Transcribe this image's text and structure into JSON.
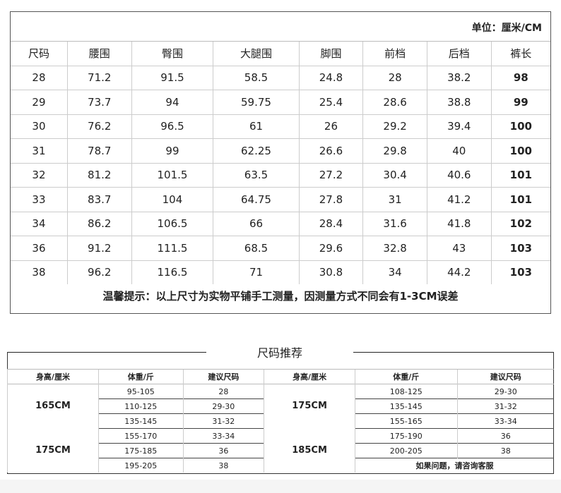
{
  "size_chart": {
    "unit": "单位：厘米/CM",
    "headers": [
      "尺码",
      "腰围",
      "臀围",
      "大腿围",
      "脚围",
      "前档",
      "后档",
      "裤长"
    ],
    "rows": [
      [
        "28",
        "71.2",
        "91.5",
        "58.5",
        "24.8",
        "28",
        "38.2",
        "98"
      ],
      [
        "29",
        "73.7",
        "94",
        "59.75",
        "25.4",
        "28.6",
        "38.8",
        "99"
      ],
      [
        "30",
        "76.2",
        "96.5",
        "61",
        "26",
        "29.2",
        "39.4",
        "100"
      ],
      [
        "31",
        "78.7",
        "99",
        "62.25",
        "26.6",
        "29.8",
        "40",
        "100"
      ],
      [
        "32",
        "81.2",
        "101.5",
        "63.5",
        "27.2",
        "30.4",
        "40.6",
        "101"
      ],
      [
        "33",
        "83.7",
        "104",
        "64.75",
        "27.8",
        "31",
        "41.2",
        "101"
      ],
      [
        "34",
        "86.2",
        "106.5",
        "66",
        "28.4",
        "31.6",
        "41.8",
        "102"
      ],
      [
        "36",
        "91.2",
        "111.5",
        "68.5",
        "29.6",
        "32.8",
        "43",
        "103"
      ],
      [
        "38",
        "96.2",
        "116.5",
        "71",
        "30.8",
        "34",
        "44.2",
        "103"
      ]
    ],
    "note": "温馨提示：以上尺寸为实物平铺手工测量，因测量方式不同会有1-3CM误差"
  },
  "recommend": {
    "title": "尺码推荐",
    "headers": [
      "身高/厘米",
      "体重/斤",
      "建议尺码",
      "身高/厘米",
      "体重/斤",
      "建议尺码"
    ],
    "left_heights": [
      "165CM",
      "175CM"
    ],
    "right_heights": [
      "175CM",
      "185CM"
    ],
    "rows": [
      [
        "95-105",
        "28",
        "108-125",
        "29-30"
      ],
      [
        "110-125",
        "29-30",
        "135-145",
        "31-32"
      ],
      [
        "135-145",
        "31-32",
        "155-165",
        "33-34"
      ],
      [
        "155-170",
        "33-34",
        "175-190",
        "36"
      ],
      [
        "175-185",
        "36",
        "200-205",
        "38"
      ],
      [
        "195-205",
        "38"
      ]
    ],
    "contact": "如果问题，请咨询客服"
  }
}
